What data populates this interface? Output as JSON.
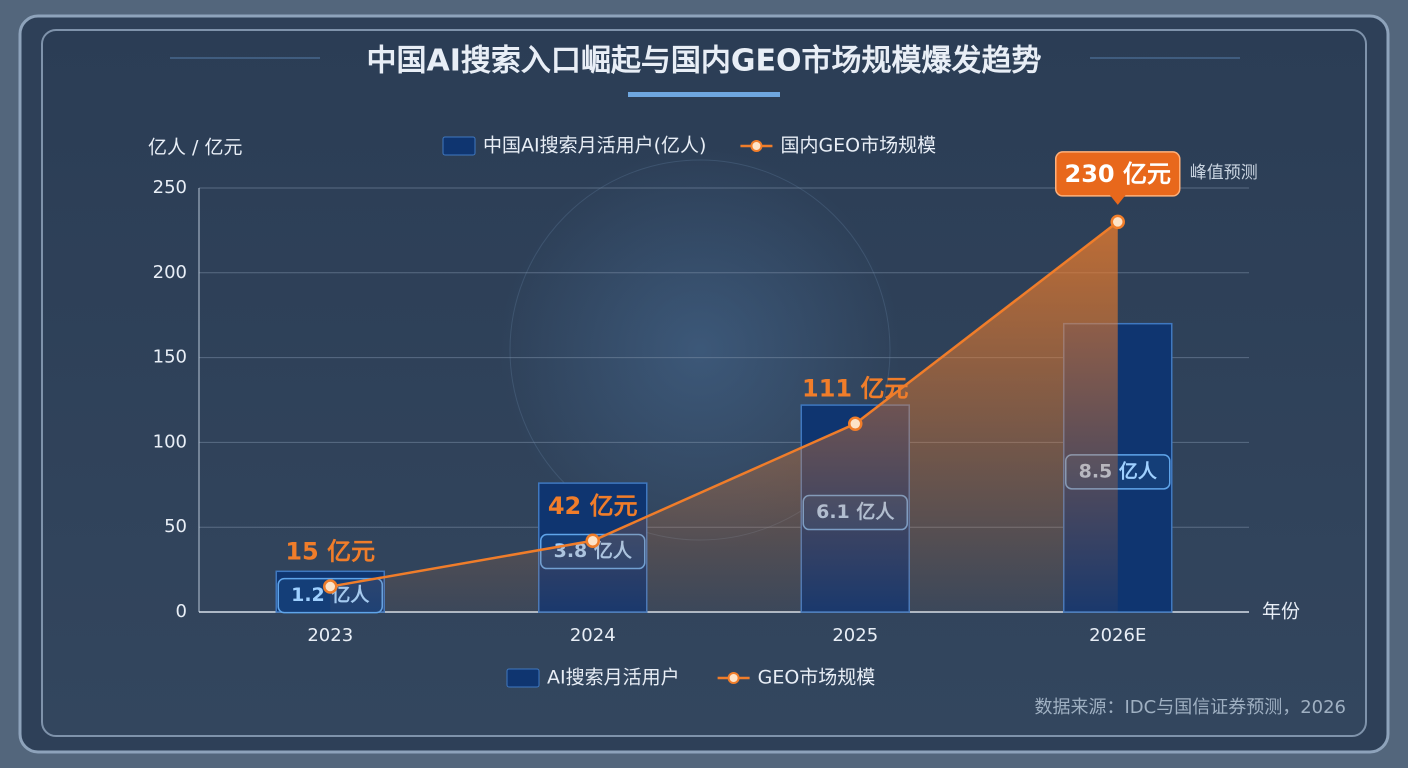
{
  "chart_data": {
    "type": "bar-line",
    "title": "中国AI搜索入口崛起与国内GEO市场规模爆发趋势",
    "y_label": "亿人 / 亿元",
    "x_label": "年份",
    "categories": [
      "2023",
      "2024",
      "2025",
      "2026E"
    ],
    "series": [
      {
        "name": "中国AI搜索月活用户(亿人)",
        "type": "bar",
        "color": "#0f3570",
        "axis": "y2",
        "values": [
          1.2,
          3.8,
          6.1,
          8.5
        ],
        "value_labels": [
          "1.2 亿人",
          "3.8 亿人",
          "6.1 亿人",
          "8.5 亿人"
        ]
      },
      {
        "name": "国内GEO市场规模",
        "type": "line",
        "color": "#f07d2a",
        "values": [
          15,
          42,
          111,
          230
        ],
        "value_labels": [
          "15 亿元",
          "42 亿元",
          "111 亿元",
          "230 亿元"
        ]
      }
    ],
    "ylim": [
      0,
      250
    ],
    "yticks": [
      0,
      50,
      100,
      150,
      200,
      250
    ],
    "y2lim": [
      0,
      12.5
    ],
    "grid": true,
    "bottom_legend": [
      "AI搜索月活用户",
      "GEO市场规模"
    ],
    "annotation": "峰值预测",
    "source": "数据来源：IDC与国信证券预测，2026"
  }
}
